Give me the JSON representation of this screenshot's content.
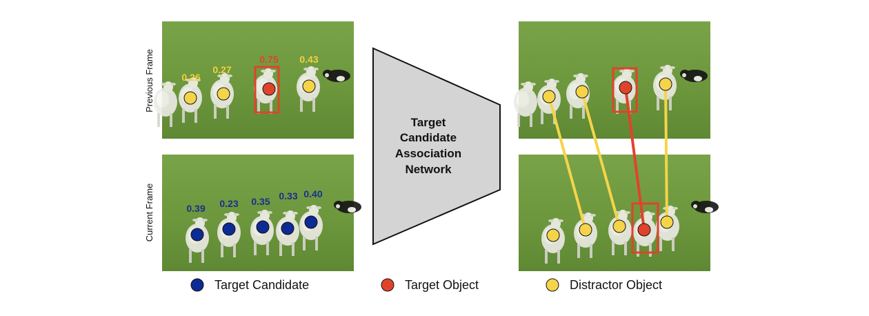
{
  "colors": {
    "target_candidate": "#0d2b94",
    "target_object": "#e0432b",
    "distractor_object": "#f5d44a",
    "candidate_score_text": "#1a2f8c",
    "target_score_text": "#e0432b",
    "distractor_score_text": "#f3d040",
    "network_fill": "#d4d4d4",
    "grass": "#6f9a3e"
  },
  "row_labels": {
    "previous": "Previous Frame",
    "current": "Current Frame"
  },
  "network": {
    "lines": [
      "Target",
      "Candidate",
      "Association",
      "Network"
    ]
  },
  "previous_frame_scores": [
    {
      "value": "0.26",
      "role": "distractor"
    },
    {
      "value": "0.27",
      "role": "distractor"
    },
    {
      "value": "0.75",
      "role": "target"
    },
    {
      "value": "0.43",
      "role": "distractor"
    }
  ],
  "current_frame_scores": [
    {
      "value": "0.39",
      "role": "candidate"
    },
    {
      "value": "0.23",
      "role": "candidate"
    },
    {
      "value": "0.35",
      "role": "candidate"
    },
    {
      "value": "0.33",
      "role": "candidate"
    },
    {
      "value": "0.40",
      "role": "candidate"
    }
  ],
  "legend": [
    {
      "label": "Target Candidate",
      "role": "target_candidate"
    },
    {
      "label": "Target Object",
      "role": "target_object"
    },
    {
      "label": "Distractor Object",
      "role": "distractor_object"
    }
  ]
}
